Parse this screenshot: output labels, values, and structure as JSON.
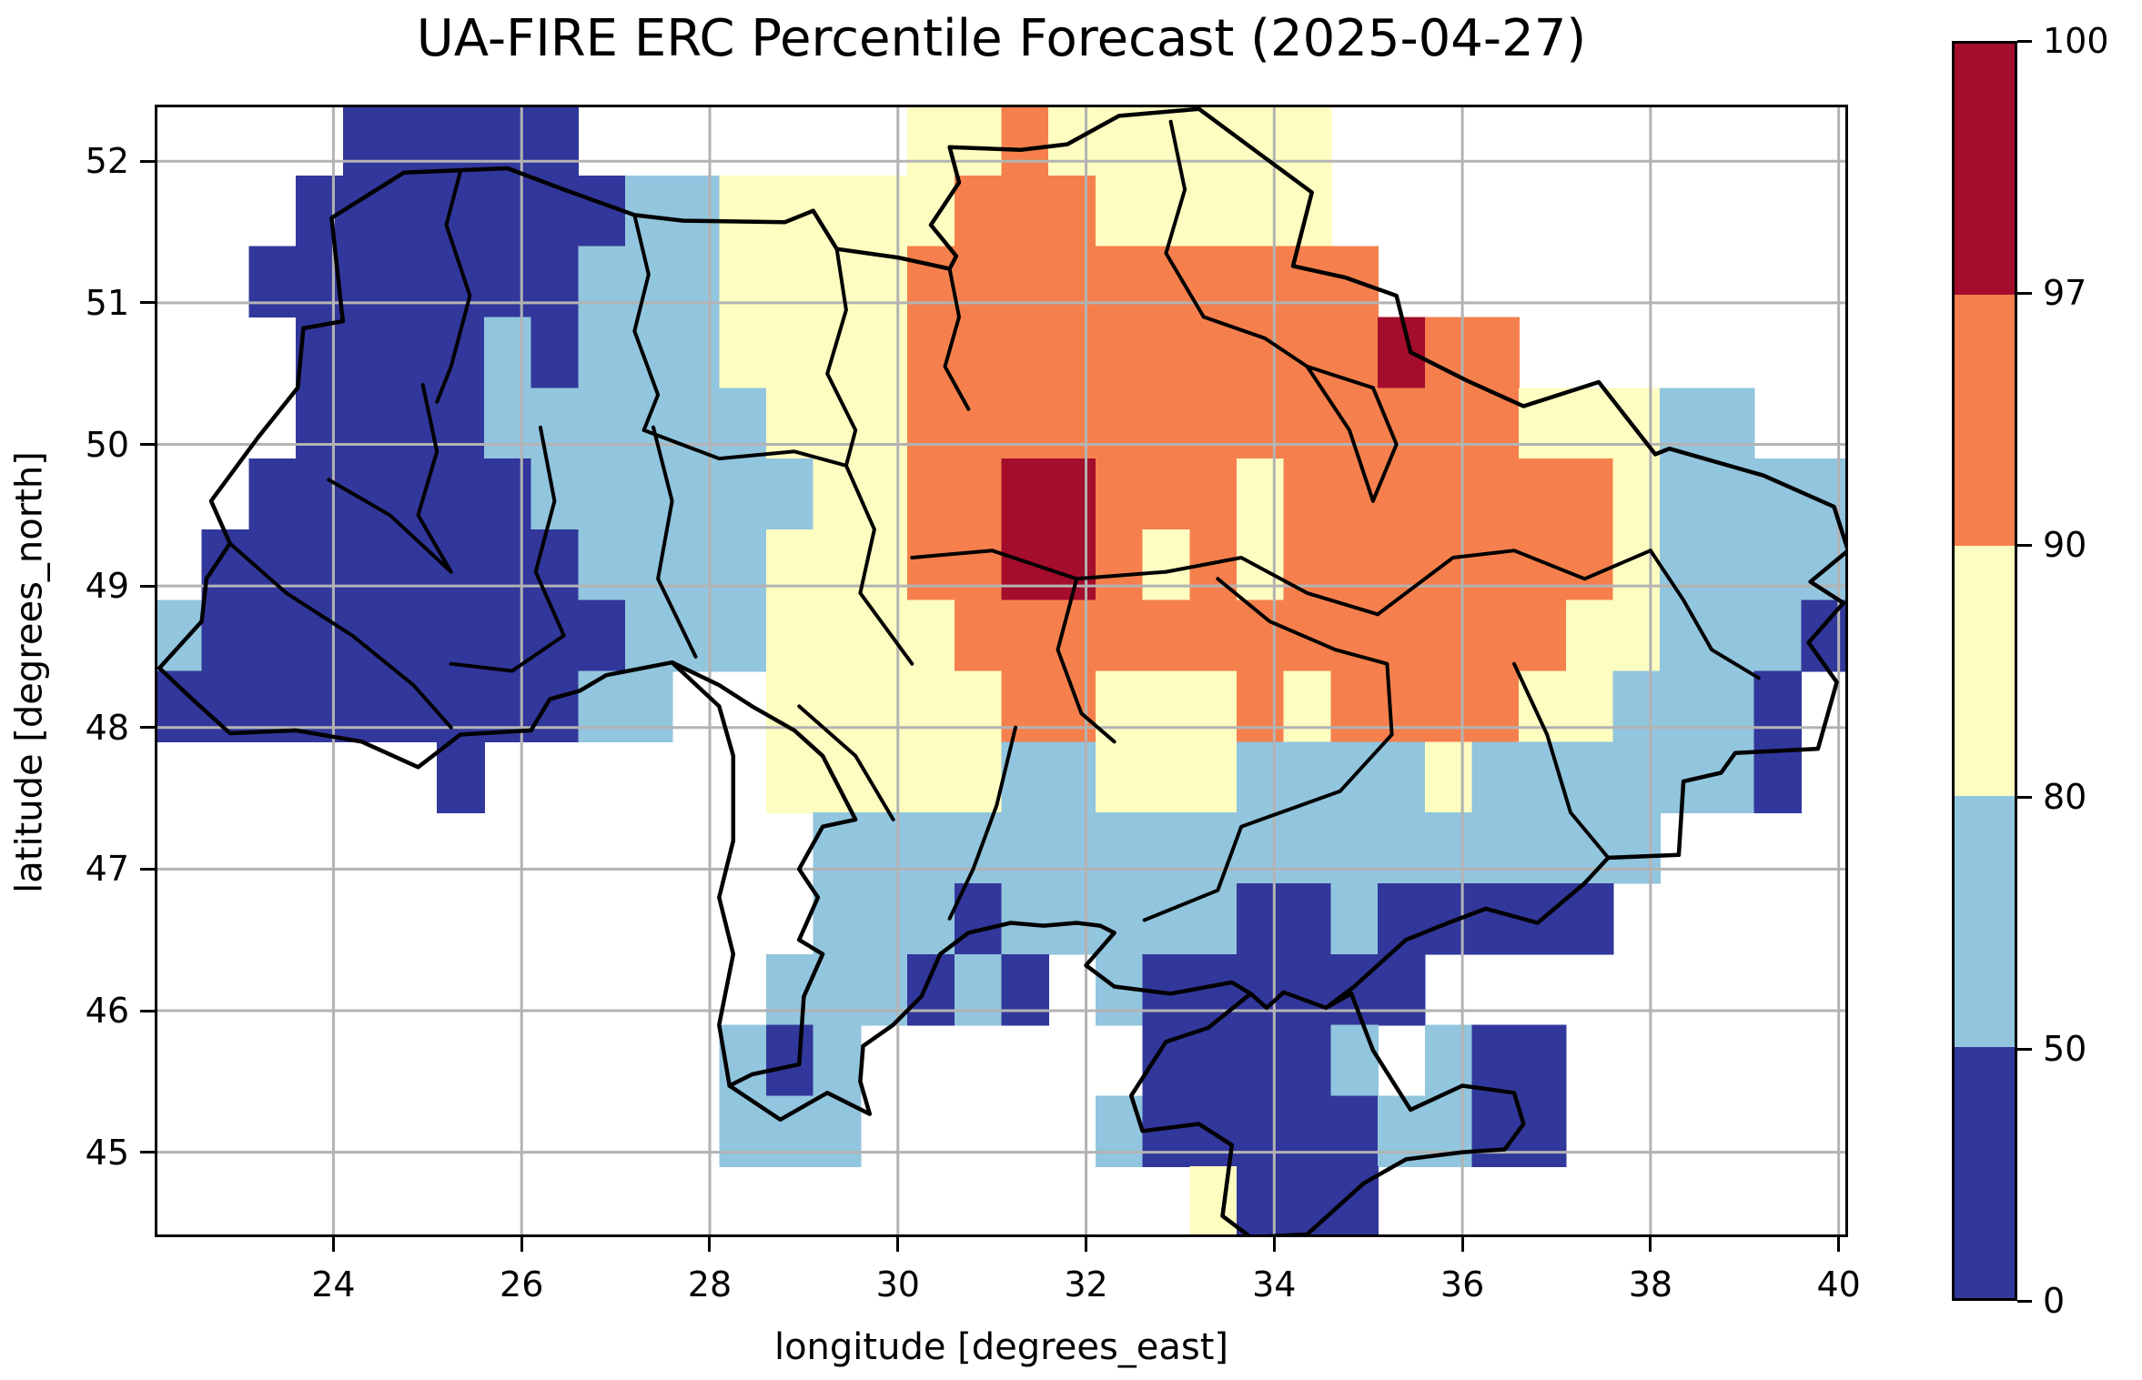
{
  "title": "UA-FIRE ERC Percentile Forecast (2025-04-27)",
  "axes": {
    "x": {
      "label": "longitude [degrees_east]",
      "ticks": [
        24,
        26,
        28,
        30,
        32,
        34,
        36,
        38,
        40
      ],
      "range": [
        22.1,
        40.1
      ]
    },
    "y": {
      "label": "latitude [degrees_north]",
      "ticks": [
        45,
        46,
        47,
        48,
        49,
        50,
        51,
        52
      ],
      "range": [
        44.4,
        52.4
      ]
    }
  },
  "style": {
    "gridline_color": "#b3b3b3",
    "border_color": "#000000",
    "frame_color": "#000000",
    "background": "#ffffff"
  },
  "colorbar": {
    "levels": [
      "0",
      "50",
      "80",
      "90",
      "97",
      "100"
    ],
    "colors": [
      "#32379b",
      "#92c5de",
      "#fdfdc1",
      "#f5804d",
      "#a50d2c"
    ]
  },
  "chart_data": {
    "type": "heatmap",
    "title": "UA-FIRE ERC Percentile Forecast (2025-04-27)",
    "xlabel": "longitude [degrees_east]",
    "ylabel": "latitude [degrees_north]",
    "lon_min": 22.1,
    "lon_max": 40.1,
    "lat_min": 44.4,
    "lat_max": 52.4,
    "cell_deg": 0.5,
    "legend": {
      "1": "0-50 percentile",
      "2": "50-80 percentile",
      "3": "80-90 percentile",
      "4": "90-97 percentile",
      "5": "97-100 percentile",
      "0": "no data"
    },
    "palette": {
      "1": "#32379b",
      "2": "#92c5de",
      "3": "#fdfdc1",
      "4": "#f5804d",
      "5": "#a50d2c"
    },
    "grid": [
      "000011111000000033433333300000000000",
      "000111111122333334443333300000000000",
      "001111111222333344444444440000000000",
      "000111121222333344444444445440000000",
      "000111122222233344444444444443332200",
      "001111112222223344554443444444432222",
      "011111111222233344554343444444432222",
      "211111111122233334444444444444332221",
      "111111111220033333443334344443322210",
      "000000100000033333223332222322222210",
      "000000000000002222222222222222220000",
      "000000000000002221222221121111100000",
      "000000000000022212102111111000000000",
      "000000000000212000000111120211000000",
      "000000000000222000002111112211000000",
      "000000000000000000000031110000000000"
    ],
    "borders": {
      "country": [
        [
          22.15,
          48.42
        ],
        [
          22.6,
          48.75
        ],
        [
          22.65,
          49.05
        ],
        [
          22.9,
          49.3
        ],
        [
          22.7,
          49.6
        ],
        [
          23.2,
          50.05
        ],
        [
          23.62,
          50.4
        ],
        [
          23.68,
          50.82
        ],
        [
          24.1,
          50.87
        ],
        [
          23.98,
          51.6
        ],
        [
          24.75,
          51.92
        ],
        [
          25.85,
          51.95
        ],
        [
          26.45,
          51.8
        ],
        [
          27.2,
          51.62
        ],
        [
          27.72,
          51.58
        ],
        [
          28.8,
          51.57
        ],
        [
          29.1,
          51.65
        ],
        [
          29.35,
          51.38
        ],
        [
          30.0,
          51.32
        ],
        [
          30.55,
          51.24
        ],
        [
          30.62,
          51.33
        ],
        [
          30.35,
          51.55
        ],
        [
          30.65,
          51.85
        ],
        [
          30.55,
          52.1
        ],
        [
          31.3,
          52.08
        ],
        [
          31.8,
          52.12
        ],
        [
          32.35,
          52.32
        ],
        [
          33.2,
          52.37
        ],
        [
          33.85,
          52.05
        ],
        [
          34.4,
          51.78
        ],
        [
          34.2,
          51.26
        ],
        [
          34.75,
          51.18
        ],
        [
          35.3,
          51.05
        ],
        [
          35.45,
          50.65
        ],
        [
          36.05,
          50.45
        ],
        [
          36.65,
          50.27
        ],
        [
          37.45,
          50.44
        ],
        [
          38.05,
          49.93
        ],
        [
          38.2,
          49.97
        ],
        [
          39.2,
          49.78
        ],
        [
          39.95,
          49.56
        ],
        [
          40.1,
          49.25
        ],
        [
          39.7,
          49.03
        ],
        [
          40.05,
          48.88
        ],
        [
          39.68,
          48.6
        ],
        [
          39.98,
          48.32
        ],
        [
          39.78,
          47.85
        ],
        [
          38.9,
          47.82
        ],
        [
          38.75,
          47.68
        ],
        [
          38.35,
          47.62
        ],
        [
          38.3,
          47.1
        ],
        [
          37.55,
          47.08
        ],
        [
          37.3,
          46.9
        ],
        [
          36.8,
          46.62
        ],
        [
          36.25,
          46.72
        ],
        [
          35.85,
          46.62
        ],
        [
          35.4,
          46.5
        ],
        [
          34.85,
          46.17
        ],
        [
          34.55,
          46.02
        ],
        [
          34.1,
          46.13
        ],
        [
          33.92,
          46.02
        ],
        [
          33.75,
          46.12
        ],
        [
          33.55,
          46.2
        ],
        [
          32.9,
          46.12
        ],
        [
          32.3,
          46.17
        ],
        [
          32.0,
          46.32
        ],
        [
          32.3,
          46.55
        ],
        [
          32.15,
          46.6
        ],
        [
          31.9,
          46.62
        ],
        [
          31.55,
          46.6
        ],
        [
          31.2,
          46.62
        ],
        [
          30.75,
          46.55
        ],
        [
          30.45,
          46.4
        ],
        [
          30.25,
          46.1
        ],
        [
          29.95,
          45.9
        ],
        [
          29.63,
          45.75
        ],
        [
          29.6,
          45.5
        ],
        [
          29.7,
          45.27
        ],
        [
          29.25,
          45.42
        ],
        [
          28.75,
          45.23
        ],
        [
          28.21,
          45.47
        ]
      ],
      "crimea": [
        [
          33.75,
          46.12
        ],
        [
          33.3,
          45.88
        ],
        [
          32.85,
          45.78
        ],
        [
          32.48,
          45.4
        ],
        [
          32.6,
          45.15
        ],
        [
          33.2,
          45.2
        ],
        [
          33.55,
          45.05
        ],
        [
          33.45,
          44.55
        ],
        [
          33.75,
          44.4
        ],
        [
          34.35,
          44.42
        ],
        [
          34.95,
          44.78
        ],
        [
          35.4,
          44.95
        ],
        [
          36.0,
          45.0
        ],
        [
          36.45,
          45.02
        ],
        [
          36.65,
          45.2
        ],
        [
          36.55,
          45.42
        ],
        [
          36.0,
          45.47
        ],
        [
          35.45,
          45.3
        ],
        [
          35.05,
          45.72
        ],
        [
          34.82,
          46.12
        ],
        [
          34.55,
          46.02
        ]
      ],
      "moldova_west": [
        [
          26.62,
          48.26
        ],
        [
          26.9,
          48.37
        ],
        [
          27.6,
          48.46
        ],
        [
          28.1,
          48.15
        ],
        [
          28.25,
          47.8
        ],
        [
          28.25,
          47.2
        ],
        [
          28.1,
          46.8
        ],
        [
          28.25,
          46.4
        ],
        [
          28.1,
          45.9
        ],
        [
          28.21,
          45.47
        ]
      ],
      "moldova_east": [
        [
          28.21,
          45.47
        ],
        [
          28.45,
          45.55
        ],
        [
          28.95,
          45.62
        ],
        [
          29.0,
          46.1
        ],
        [
          29.2,
          46.4
        ],
        [
          28.95,
          46.5
        ],
        [
          29.15,
          46.8
        ],
        [
          28.95,
          47.0
        ],
        [
          29.2,
          47.3
        ],
        [
          29.55,
          47.35
        ],
        [
          29.2,
          47.8
        ],
        [
          28.9,
          47.98
        ],
        [
          28.45,
          48.15
        ],
        [
          28.1,
          48.3
        ],
        [
          27.6,
          48.46
        ]
      ],
      "southwest": [
        [
          22.15,
          48.42
        ],
        [
          22.5,
          48.2
        ],
        [
          22.9,
          47.96
        ],
        [
          23.6,
          47.98
        ],
        [
          24.3,
          47.9
        ],
        [
          24.9,
          47.72
        ],
        [
          25.35,
          47.95
        ],
        [
          26.1,
          47.98
        ],
        [
          26.3,
          48.2
        ],
        [
          26.62,
          48.26
        ]
      ],
      "oblasts": [
        [
          [
            25.35,
            51.93
          ],
          [
            25.2,
            51.55
          ],
          [
            25.45,
            51.05
          ],
          [
            25.25,
            50.55
          ],
          [
            25.1,
            50.3
          ]
        ],
        [
          [
            27.2,
            51.62
          ],
          [
            27.35,
            51.2
          ],
          [
            27.2,
            50.8
          ],
          [
            27.45,
            50.35
          ],
          [
            27.3,
            50.1
          ]
        ],
        [
          [
            29.35,
            51.38
          ],
          [
            29.45,
            50.95
          ],
          [
            29.25,
            50.5
          ],
          [
            29.55,
            50.1
          ],
          [
            29.45,
            49.85
          ]
        ],
        [
          [
            30.55,
            51.24
          ],
          [
            30.65,
            50.9
          ],
          [
            30.5,
            50.55
          ],
          [
            30.75,
            50.25
          ]
        ],
        [
          [
            32.9,
            52.28
          ],
          [
            33.05,
            51.8
          ],
          [
            32.85,
            51.35
          ],
          [
            33.25,
            50.9
          ]
        ],
        [
          [
            33.25,
            50.9
          ],
          [
            33.9,
            50.75
          ],
          [
            34.35,
            50.55
          ],
          [
            35.05,
            50.4
          ]
        ],
        [
          [
            24.95,
            50.42
          ],
          [
            25.1,
            49.95
          ],
          [
            24.9,
            49.5
          ],
          [
            25.25,
            49.1
          ]
        ],
        [
          [
            26.2,
            50.12
          ],
          [
            26.35,
            49.6
          ],
          [
            26.15,
            49.1
          ],
          [
            26.45,
            48.65
          ]
        ],
        [
          [
            27.4,
            50.12
          ],
          [
            27.6,
            49.6
          ],
          [
            27.45,
            49.05
          ],
          [
            27.85,
            48.5
          ]
        ],
        [
          [
            29.45,
            49.85
          ],
          [
            29.75,
            49.4
          ],
          [
            29.6,
            48.95
          ],
          [
            30.15,
            48.45
          ]
        ],
        [
          [
            30.15,
            49.2
          ],
          [
            31.0,
            49.25
          ],
          [
            31.9,
            49.05
          ],
          [
            32.85,
            49.1
          ]
        ],
        [
          [
            32.85,
            49.1
          ],
          [
            33.65,
            49.2
          ],
          [
            34.35,
            48.95
          ],
          [
            35.1,
            48.8
          ]
        ],
        [
          [
            35.1,
            48.8
          ],
          [
            35.9,
            49.2
          ],
          [
            36.55,
            49.25
          ],
          [
            37.3,
            49.05
          ],
          [
            38.0,
            49.25
          ]
        ],
        [
          [
            38.0,
            49.25
          ],
          [
            38.35,
            48.9
          ],
          [
            38.65,
            48.55
          ],
          [
            39.15,
            48.35
          ]
        ],
        [
          [
            36.55,
            48.45
          ],
          [
            36.9,
            47.95
          ],
          [
            37.15,
            47.4
          ],
          [
            37.55,
            47.08
          ]
        ],
        [
          [
            33.4,
            49.05
          ],
          [
            33.95,
            48.75
          ],
          [
            34.65,
            48.55
          ],
          [
            35.2,
            48.45
          ],
          [
            35.25,
            47.95
          ],
          [
            34.7,
            47.55
          ],
          [
            33.65,
            47.3
          ],
          [
            33.4,
            46.85
          ],
          [
            32.62,
            46.64
          ]
        ],
        [
          [
            31.25,
            48.0
          ],
          [
            31.05,
            47.45
          ],
          [
            30.8,
            47.0
          ],
          [
            30.55,
            46.65
          ]
        ],
        [
          [
            28.95,
            48.15
          ],
          [
            29.55,
            47.8
          ],
          [
            29.95,
            47.35
          ]
        ],
        [
          [
            22.9,
            49.3
          ],
          [
            23.5,
            48.95
          ],
          [
            24.2,
            48.65
          ],
          [
            24.85,
            48.3
          ],
          [
            25.25,
            48.0
          ]
        ],
        [
          [
            23.95,
            49.75
          ],
          [
            24.6,
            49.5
          ],
          [
            25.25,
            49.1
          ]
        ],
        [
          [
            25.25,
            48.45
          ],
          [
            25.9,
            48.4
          ],
          [
            26.45,
            48.65
          ]
        ],
        [
          [
            27.3,
            50.1
          ],
          [
            28.1,
            49.9
          ],
          [
            28.9,
            49.95
          ],
          [
            29.45,
            49.85
          ]
        ],
        [
          [
            31.9,
            49.05
          ],
          [
            31.7,
            48.55
          ],
          [
            31.95,
            48.1
          ],
          [
            32.3,
            47.9
          ]
        ],
        [
          [
            34.35,
            50.55
          ],
          [
            34.8,
            50.1
          ],
          [
            35.05,
            49.6
          ]
        ],
        [
          [
            35.05,
            50.4
          ],
          [
            35.3,
            50.0
          ],
          [
            35.05,
            49.6
          ]
        ]
      ]
    }
  }
}
